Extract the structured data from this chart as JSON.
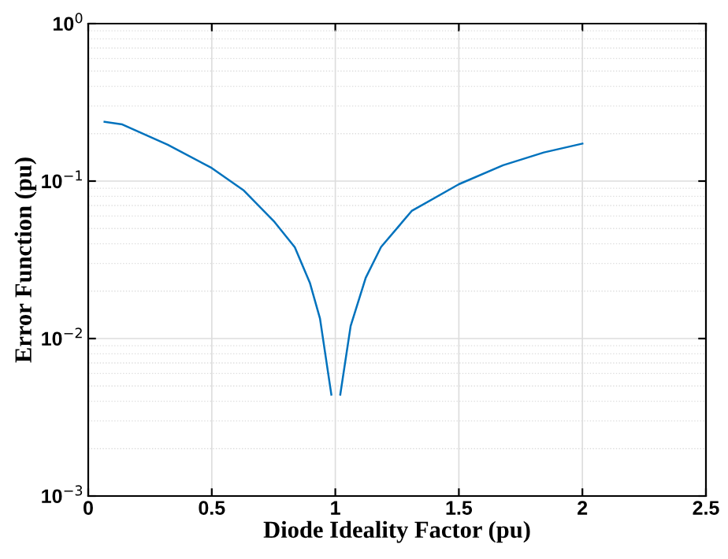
{
  "chart_data": {
    "type": "line",
    "xlabel": "Diode Ideality Factor (pu)",
    "ylabel": "Error Function (pu)",
    "log": "y",
    "grid": true,
    "line_style": "solid",
    "marker": "none",
    "x": [
      0.066,
      0.138,
      0.322,
      0.5,
      0.63,
      0.754,
      0.836,
      0.897,
      0.938,
      0.984,
      null,
      1.02,
      1.062,
      1.123,
      1.185,
      1.309,
      1.5,
      1.679,
      1.844,
      2.0
    ],
    "series": [
      {
        "color": "#0072bd",
        "values": [
          0.238,
          0.229,
          0.17,
          0.121,
          0.087,
          0.055,
          0.038,
          0.0226,
          0.0134,
          0.0044,
          null,
          0.0044,
          0.012,
          0.0243,
          0.0381,
          0.0646,
          0.0955,
          0.126,
          0.152,
          0.173
        ]
      }
    ],
    "xlim": [
      0,
      2.5
    ],
    "xticks": [
      0,
      0.5,
      1,
      1.5,
      2,
      2.5
    ],
    "ylim": [
      0.001,
      1
    ],
    "yticks": [
      {
        "value": 0.001,
        "label": "10$^{−3}$"
      },
      {
        "value": 0.01,
        "label": "10$^{−2}$"
      },
      {
        "value": 0.1,
        "label": "10$^{−1}$"
      },
      {
        "value": 1,
        "label": "10$^{0}$"
      }
    ]
  }
}
